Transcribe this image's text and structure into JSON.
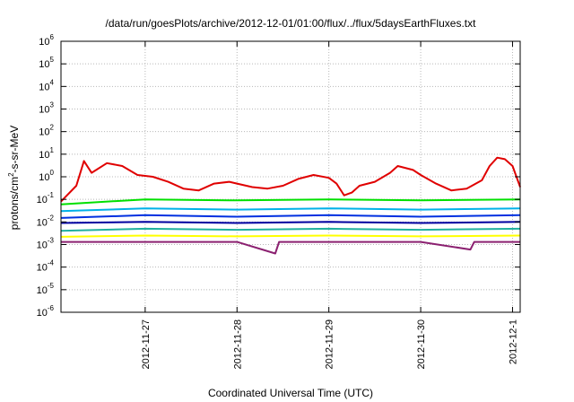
{
  "chart_data": {
    "type": "line",
    "title": "/data/run/goesPlots/archive/2012-12-01/01:00/flux/../flux/5daysEarthFluxes.txt",
    "xlabel": "Coordinated Universal Time (UTC)",
    "ylabel": "protons/cm²-s-sr-MeV",
    "ylabel_parts": {
      "base": "protons/cm",
      "sup": "2",
      "rest": "-s-sr-MeV"
    },
    "yscale": "log",
    "ylim": [
      1e-06,
      1000000.0
    ],
    "xlim": [
      "2012-11-26 02:00",
      "2012-12-01 02:00"
    ],
    "grid": true,
    "y_ticks": [
      {
        "value": 1e-06,
        "base": "10",
        "exp": "-6"
      },
      {
        "value": 1e-05,
        "base": "10",
        "exp": "-5"
      },
      {
        "value": 0.0001,
        "base": "10",
        "exp": "-4"
      },
      {
        "value": 0.001,
        "base": "10",
        "exp": "-3"
      },
      {
        "value": 0.01,
        "base": "10",
        "exp": "-2"
      },
      {
        "value": 0.1,
        "base": "10",
        "exp": "-1"
      },
      {
        "value": 1,
        "base": "10",
        "exp": "0"
      },
      {
        "value": 10,
        "base": "10",
        "exp": "1"
      },
      {
        "value": 100,
        "base": "10",
        "exp": "2"
      },
      {
        "value": 1000,
        "base": "10",
        "exp": "3"
      },
      {
        "value": 10000,
        "base": "10",
        "exp": "4"
      },
      {
        "value": 100000,
        "base": "10",
        "exp": "5"
      },
      {
        "value": 1000000,
        "base": "10",
        "exp": "6"
      }
    ],
    "x_ticks": [
      {
        "date": "2012-11-27 00:00",
        "label": "2012-11-27"
      },
      {
        "date": "2012-11-28 00:00",
        "label": "2012-11-28"
      },
      {
        "date": "2012-11-29 00:00",
        "label": "2012-11-29"
      },
      {
        "date": "2012-11-30 00:00",
        "label": "2012-11-30"
      },
      {
        "date": "2012-12-01 00:00",
        "label": "2012-12-1"
      }
    ],
    "series": [
      {
        "color": "#e00000",
        "points": [
          [
            "2012-11-26 02:00",
            0.08
          ],
          [
            "2012-11-26 06:00",
            0.4
          ],
          [
            "2012-11-26 08:00",
            5.0
          ],
          [
            "2012-11-26 10:00",
            1.5
          ],
          [
            "2012-11-26 14:00",
            4.0
          ],
          [
            "2012-11-26 18:00",
            3.0
          ],
          [
            "2012-11-26 22:00",
            1.2
          ],
          [
            "2012-11-27 02:00",
            1.0
          ],
          [
            "2012-11-27 06:00",
            0.6
          ],
          [
            "2012-11-27 10:00",
            0.3
          ],
          [
            "2012-11-27 14:00",
            0.25
          ],
          [
            "2012-11-27 18:00",
            0.5
          ],
          [
            "2012-11-27 22:00",
            0.6
          ],
          [
            "2012-11-28 00:00",
            0.5
          ],
          [
            "2012-11-28 04:00",
            0.35
          ],
          [
            "2012-11-28 08:00",
            0.3
          ],
          [
            "2012-11-28 12:00",
            0.4
          ],
          [
            "2012-11-28 16:00",
            0.8
          ],
          [
            "2012-11-28 20:00",
            1.2
          ],
          [
            "2012-11-29 00:00",
            0.9
          ],
          [
            "2012-11-29 02:00",
            0.5
          ],
          [
            "2012-11-29 04:00",
            0.15
          ],
          [
            "2012-11-29 06:00",
            0.2
          ],
          [
            "2012-11-29 08:00",
            0.4
          ],
          [
            "2012-11-29 12:00",
            0.6
          ],
          [
            "2012-11-29 16:00",
            1.5
          ],
          [
            "2012-11-29 18:00",
            3.0
          ],
          [
            "2012-11-29 22:00",
            2.0
          ],
          [
            "2012-11-30 00:00",
            1.2
          ],
          [
            "2012-11-30 04:00",
            0.5
          ],
          [
            "2012-11-30 08:00",
            0.25
          ],
          [
            "2012-11-30 12:00",
            0.3
          ],
          [
            "2012-11-30 16:00",
            0.7
          ],
          [
            "2012-11-30 18:00",
            3.0
          ],
          [
            "2012-11-30 20:00",
            7.0
          ],
          [
            "2012-11-30 22:00",
            6.0
          ],
          [
            "2012-12-01 00:00",
            3.0
          ],
          [
            "2012-12-01 02:00",
            0.35
          ]
        ]
      },
      {
        "color": "#00e000",
        "points": [
          [
            "2012-11-26 02:00",
            0.06
          ],
          [
            "2012-11-27 00:00",
            0.1
          ],
          [
            "2012-11-28 00:00",
            0.09
          ],
          [
            "2012-11-29 00:00",
            0.1
          ],
          [
            "2012-11-30 00:00",
            0.09
          ],
          [
            "2012-12-01 02:00",
            0.1
          ]
        ]
      },
      {
        "color": "#00b0e8",
        "points": [
          [
            "2012-11-26 02:00",
            0.03
          ],
          [
            "2012-11-27 00:00",
            0.04
          ],
          [
            "2012-11-28 00:00",
            0.035
          ],
          [
            "2012-11-29 00:00",
            0.04
          ],
          [
            "2012-11-30 00:00",
            0.035
          ],
          [
            "2012-12-01 02:00",
            0.04
          ]
        ]
      },
      {
        "color": "#0030e0",
        "points": [
          [
            "2012-11-26 02:00",
            0.015
          ],
          [
            "2012-11-27 00:00",
            0.02
          ],
          [
            "2012-11-28 00:00",
            0.017
          ],
          [
            "2012-11-29 00:00",
            0.02
          ],
          [
            "2012-11-30 00:00",
            0.017
          ],
          [
            "2012-12-01 02:00",
            0.02
          ]
        ]
      },
      {
        "color": "#0000a0",
        "points": [
          [
            "2012-11-26 02:00",
            0.009
          ],
          [
            "2012-11-27 00:00",
            0.01
          ],
          [
            "2012-11-28 00:00",
            0.009
          ],
          [
            "2012-11-29 00:00",
            0.01
          ],
          [
            "2012-11-30 00:00",
            0.009
          ],
          [
            "2012-12-01 02:00",
            0.01
          ]
        ]
      },
      {
        "color": "#20b0a0",
        "points": [
          [
            "2012-11-26 02:00",
            0.004
          ],
          [
            "2012-11-27 00:00",
            0.005
          ],
          [
            "2012-11-28 00:00",
            0.0045
          ],
          [
            "2012-11-29 00:00",
            0.005
          ],
          [
            "2012-11-30 00:00",
            0.0045
          ],
          [
            "2012-12-01 02:00",
            0.005
          ]
        ]
      },
      {
        "color": "#ffff00",
        "points": [
          [
            "2012-11-26 02:00",
            0.0022
          ],
          [
            "2012-11-27 00:00",
            0.0025
          ],
          [
            "2012-11-28 00:00",
            0.0023
          ],
          [
            "2012-11-29 00:00",
            0.0025
          ],
          [
            "2012-11-30 00:00",
            0.0023
          ],
          [
            "2012-12-01 02:00",
            0.0025
          ]
        ]
      },
      {
        "color": "#8b2070",
        "points": [
          [
            "2012-11-26 02:00",
            0.0013
          ],
          [
            "2012-11-27 00:00",
            0.0013
          ],
          [
            "2012-11-28 00:00",
            0.0013
          ],
          [
            "2012-11-28 10:00",
            0.0004
          ],
          [
            "2012-11-28 11:00",
            0.0013
          ],
          [
            "2012-11-29 00:00",
            0.0013
          ],
          [
            "2012-11-30 00:00",
            0.0013
          ],
          [
            "2012-11-30 13:00",
            0.0006
          ],
          [
            "2012-11-30 14:00",
            0.0013
          ],
          [
            "2012-12-01 02:00",
            0.0013
          ]
        ]
      }
    ]
  }
}
